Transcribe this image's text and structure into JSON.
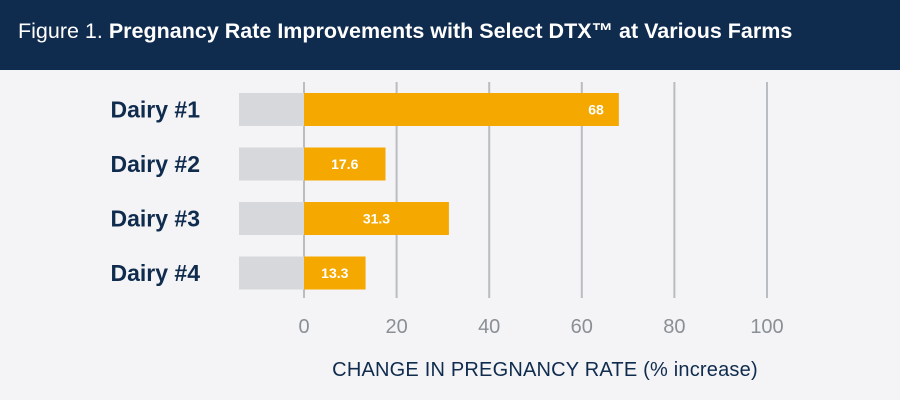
{
  "header": {
    "title_lead": "Figure 1.",
    "title_rest": "Pregnancy Rate Improvements with Select DTX™ at Various Farms",
    "colors": {
      "background": "#0f2b4d",
      "text": "#ffffff"
    }
  },
  "chart_data": {
    "type": "bar",
    "orientation": "horizontal",
    "title": "Figure 1. Pregnancy Rate Improvements with Select DTX™ at Various Farms",
    "categories": [
      "Dairy #1",
      "Dairy #2",
      "Dairy #3",
      "Dairy #4"
    ],
    "series": [
      {
        "values": [
          68,
          17.6,
          31.3,
          13.3
        ],
        "color": "#f5a800"
      }
    ],
    "value_labels": [
      "68",
      "17.6",
      "31.3",
      "13.3"
    ],
    "xlabel": "CHANGE IN PREGNANCY RATE (% increase)",
    "ylabel": "",
    "xlim": [
      0,
      100
    ],
    "x_ticks": [
      0,
      20,
      40,
      60,
      80,
      100
    ],
    "x_tick_labels": [
      "0",
      "20",
      "40",
      "60",
      "80",
      "100"
    ],
    "grid": true,
    "colors": {
      "bar": "#f5a800",
      "baseline_stub": "#d6d8db",
      "grid": "#b9bcc0",
      "category_text": "#0f2b4d",
      "tick_text": "#8a8f96",
      "axis_title": "#0f2b4d"
    }
  }
}
